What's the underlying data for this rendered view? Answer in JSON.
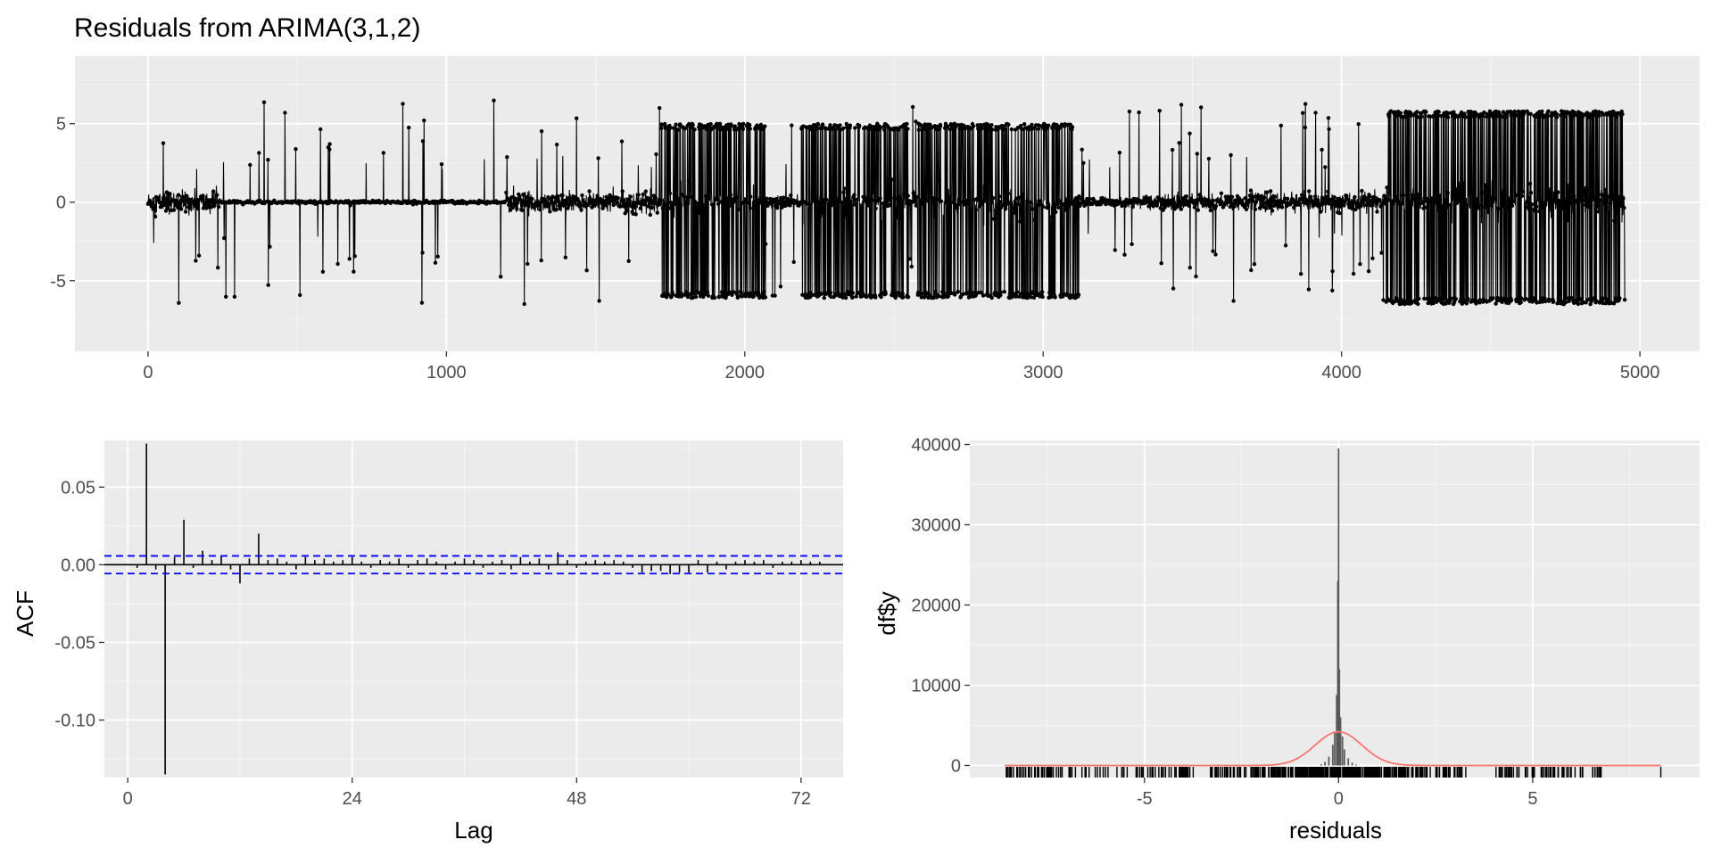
{
  "chart_data": [
    {
      "type": "line",
      "title": "Residuals from ARIMA(3,1,2)",
      "xlabel": "",
      "ylabel": "",
      "xlim": [
        -245,
        5200
      ],
      "ylim": [
        -9.5,
        9.3
      ],
      "x_ticks": [
        0,
        1000,
        2000,
        3000,
        4000,
        5000
      ],
      "y_ticks": [
        -5,
        0,
        5
      ],
      "x_tick_labels": [
        "0",
        "1000",
        "2000",
        "3000",
        "4000",
        "5000"
      ],
      "y_tick_labels": [
        "-5",
        "0",
        "5"
      ],
      "n_points": 4950,
      "segments": [
        {
          "x_from": 0,
          "x_to": 240,
          "noise": 0.35,
          "range": [
            -0.7,
            0.8
          ]
        },
        {
          "x_from": 240,
          "x_to": 1200,
          "noise": 0.05,
          "range": [
            -0.2,
            0.2
          ]
        },
        {
          "x_from": 1200,
          "x_to": 1720,
          "noise": 0.3,
          "range": [
            -0.8,
            0.8
          ]
        },
        {
          "x_from": 1720,
          "x_to": 2070,
          "noise": 0.25,
          "range": [
            -6.1,
            5.0
          ]
        },
        {
          "x_from": 2070,
          "x_to": 2190,
          "noise": 0.2,
          "range": [
            -0.6,
            0.6
          ]
        },
        {
          "x_from": 2190,
          "x_to": 2550,
          "noise": 0.25,
          "range": [
            -6.1,
            5.0
          ]
        },
        {
          "x_from": 2550,
          "x_to": 2580,
          "noise": 0.2,
          "range": [
            -0.5,
            0.5
          ]
        },
        {
          "x_from": 2580,
          "x_to": 3120,
          "noise": 0.25,
          "range": [
            -6.1,
            5.0
          ]
        },
        {
          "x_from": 3120,
          "x_to": 3350,
          "noise": 0.15,
          "range": [
            -0.5,
            0.5
          ]
        },
        {
          "x_from": 3350,
          "x_to": 3700,
          "noise": 0.25,
          "range": [
            -0.8,
            0.8
          ]
        },
        {
          "x_from": 3700,
          "x_to": 4150,
          "noise": 0.3,
          "range": [
            -0.8,
            0.9
          ]
        },
        {
          "x_from": 4150,
          "x_to": 4950,
          "noise": 0.35,
          "range": [
            -6.5,
            5.8
          ]
        }
      ],
      "extremes": {
        "max": 8.5,
        "min": -8.7
      }
    },
    {
      "type": "bar",
      "title": "",
      "xlabel": "Lag",
      "ylabel": "ACF",
      "xlim": [
        -2.5,
        76.5
      ],
      "ylim": [
        -0.137,
        0.08
      ],
      "x_ticks": [
        0,
        24,
        48,
        72
      ],
      "y_ticks": [
        -0.1,
        -0.05,
        0.0,
        0.05
      ],
      "x_tick_labels": [
        "0",
        "24",
        "48",
        "72"
      ],
      "y_tick_labels": [
        "-0.10",
        "-0.05",
        "0.00",
        "0.05"
      ],
      "confidence_bound": 0.0057,
      "lags": [
        1,
        2,
        3,
        4,
        5,
        6,
        7,
        8,
        9,
        10,
        11,
        12,
        13,
        14,
        15,
        16,
        17,
        18,
        19,
        20,
        21,
        22,
        23,
        24,
        25,
        26,
        27,
        28,
        29,
        30,
        31,
        32,
        33,
        34,
        35,
        36,
        37,
        38,
        39,
        40,
        41,
        42,
        43,
        44,
        45,
        46,
        47,
        48,
        49,
        50,
        51,
        52,
        53,
        54,
        55,
        56,
        57,
        58,
        59,
        60,
        61,
        62,
        63,
        64,
        65,
        66,
        67,
        68,
        69,
        70,
        71,
        72,
        73,
        74
      ],
      "values": [
        -0.002,
        0.078,
        -0.003,
        -0.135,
        0.005,
        0.029,
        -0.002,
        0.009,
        0.003,
        0.006,
        -0.003,
        -0.012,
        0.004,
        0.02,
        0.003,
        0.004,
        0.002,
        -0.003,
        0.005,
        0.003,
        0.004,
        0.002,
        0.003,
        0.005,
        0.002,
        -0.002,
        0.003,
        0.002,
        0.004,
        -0.002,
        0.003,
        0.004,
        0.002,
        -0.003,
        0.002,
        0.004,
        0.003,
        -0.002,
        0.002,
        0.003,
        -0.003,
        0.005,
        0.002,
        0.004,
        -0.003,
        0.008,
        0.003,
        -0.002,
        0.002,
        0.003,
        0.002,
        0.003,
        0.002,
        -0.002,
        -0.005,
        -0.004,
        -0.004,
        -0.006,
        -0.005,
        -0.005,
        0.003,
        -0.005,
        0.002,
        -0.003,
        0.002,
        0.003,
        0.002,
        0.003,
        -0.002,
        0.002,
        0.002,
        0.003,
        0.002,
        0.002
      ]
    },
    {
      "type": "bar",
      "title": "",
      "xlabel": "residuals",
      "ylabel": "df$y",
      "xlim": [
        -9.5,
        9.3
      ],
      "ylim": [
        -1500,
        40500
      ],
      "x_ticks": [
        -5,
        0,
        5
      ],
      "y_ticks": [
        0,
        10000,
        20000,
        30000,
        40000
      ],
      "x_tick_labels": [
        "-5",
        "0",
        "5"
      ],
      "y_tick_labels": [
        "0",
        "10000",
        "20000",
        "30000",
        "40000"
      ],
      "histogram": {
        "bins": [
          -0.45,
          -0.35,
          -0.25,
          -0.15,
          -0.1,
          -0.05,
          -0.02,
          0.0,
          0.02,
          0.05,
          0.1,
          0.15,
          0.25,
          0.35,
          0.45
        ],
        "counts": [
          150,
          450,
          1100,
          2600,
          4200,
          8800,
          23000,
          39500,
          12000,
          6000,
          3600,
          2000,
          900,
          350,
          120
        ],
        "bin_width": 0.04
      },
      "normal_curve": {
        "mean": 0,
        "sd": 0.6,
        "peak": 4200,
        "color": "#f8766d"
      },
      "rug_ranges": [
        [
          -8.6,
          -3.7
        ],
        [
          -3.3,
          -2.3
        ],
        [
          -2.2,
          2.3
        ],
        [
          2.5,
          3.3
        ],
        [
          4.0,
          6.8
        ],
        [
          8.3,
          8.3
        ]
      ]
    }
  ]
}
